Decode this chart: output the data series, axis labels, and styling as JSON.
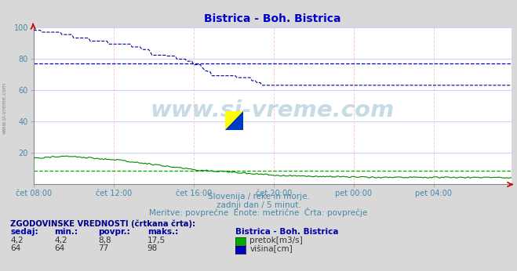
{
  "title": "Bistrica - Boh. Bistrica",
  "title_color": "#0000cc",
  "bg_color": "#d8d8d8",
  "plot_bg_color": "#ffffff",
  "grid_color_v": "#ffcccc",
  "grid_color_h": "#ccccff",
  "xlabel_color": "#4488aa",
  "text_color": "#4488aa",
  "subtitle_lines": [
    "Slovenija / reke in morje.",
    "zadnji dan / 5 minut.",
    "Meritve: povprečne  Enote: metrične  Črta: povprečje"
  ],
  "watermark": "www.si-vreme.com",
  "watermark_color": "#4488aa",
  "watermark_alpha": 0.3,
  "xticklabels": [
    "čet 08:00",
    "čet 12:00",
    "čet 16:00",
    "čet 20:00",
    "pet 00:00",
    "pet 04:00"
  ],
  "xtick_positions": [
    0,
    48,
    96,
    144,
    192,
    240
  ],
  "ylim": [
    0,
    100
  ],
  "yticks": [
    20,
    40,
    60,
    80,
    100
  ],
  "total_points": 288,
  "pretok_color": "#008800",
  "visina_color": "#000099",
  "pretok_avg": 8.8,
  "visina_avg": 77,
  "pretok_avg_color": "#00aa00",
  "visina_avg_color": "#0000cc",
  "legend_items": [
    {
      "label": "pretok[m3/s]",
      "color": "#00aa00"
    },
    {
      "label": "višina[cm]",
      "color": "#0000bb"
    }
  ],
  "table_title": "ZGODOVINSKE VREDNOSTI (črtkana črta):",
  "table_headers": [
    "sedaj:",
    "min.:",
    "povpr.:",
    "maks.:"
  ],
  "table_row1": [
    "4,2",
    "4,2",
    "8,8",
    "17,5"
  ],
  "table_row2": [
    "64",
    "64",
    "77",
    "98"
  ],
  "table_station": "Bistrica - Boh. Bistrica",
  "arrow_color": "#cc0000"
}
